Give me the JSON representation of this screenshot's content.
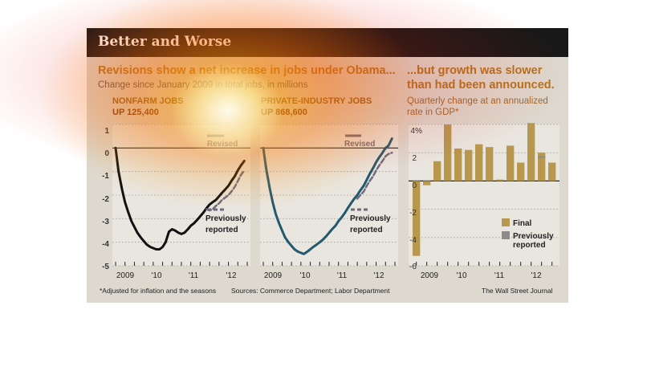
{
  "title": "Better and Worse",
  "left_heading": "Revisions show a net increase in jobs under Obama...",
  "left_sub": "Change since January 2009 in total jobs, in millions",
  "right_heading_1": "...but growth was slower",
  "right_heading_2": "than had been announced.",
  "right_sub_1": "Quarterly change at an annualized",
  "right_sub_2": "rate in GDP*",
  "nonfarm": {
    "label": "NONFARM JOBS",
    "value": "UP 125,400",
    "revised": "Revised",
    "prev1": "Previously",
    "prev2": "reported"
  },
  "private": {
    "label": "PRIVATE-INDUSTRY JOBS",
    "value": "UP 868,600",
    "revised": "Revised",
    "prev1": "Previously",
    "prev2": "reported"
  },
  "legend": {
    "final": "Final",
    "prev1": "Previously",
    "prev2": "reported"
  },
  "footnote": "*Adjusted for inflation and the seasons",
  "sources": "Sources: Commerce Department; Labor Department",
  "credit": "The Wall Street Journal",
  "colors": {
    "nonfarm_line": "#111111",
    "private_line": "#23586e",
    "previous_line": "#6f6a7e",
    "final_bar": "#b8974f",
    "previous_bar": "#8b8b8b"
  },
  "chart_data": [
    {
      "type": "line",
      "name": "NONFARM JOBS",
      "ylim": [
        -5,
        1
      ],
      "y_ticks": [
        "1",
        "0",
        "-1",
        "-2",
        "-3",
        "-4",
        "-5"
      ],
      "x_ticks": [
        "2009",
        "'10",
        "'11",
        "'12"
      ],
      "series": [
        {
          "name": "Revised",
          "x": [
            2009.0,
            2009.08,
            2009.17,
            2009.25,
            2009.33,
            2009.42,
            2009.5,
            2009.58,
            2009.67,
            2009.75,
            2009.83,
            2009.92,
            2010.0,
            2010.08,
            2010.17,
            2010.25,
            2010.33,
            2010.42,
            2010.5,
            2010.58,
            2010.67,
            2010.75,
            2010.83,
            2010.92,
            2011.0,
            2011.08,
            2011.17,
            2011.25,
            2011.33,
            2011.42,
            2011.5,
            2011.58,
            2011.67,
            2011.75,
            2011.83,
            2011.92,
            2012.0,
            2012.08,
            2012.17,
            2012.25,
            2012.33,
            2012.42
          ],
          "y": [
            0,
            -1.0,
            -1.75,
            -2.3,
            -2.7,
            -3.1,
            -3.35,
            -3.6,
            -3.8,
            -3.95,
            -4.1,
            -4.2,
            -4.25,
            -4.3,
            -4.3,
            -4.2,
            -4.0,
            -3.55,
            -3.45,
            -3.5,
            -3.6,
            -3.65,
            -3.6,
            -3.45,
            -3.3,
            -3.2,
            -3.05,
            -2.9,
            -2.75,
            -2.55,
            -2.4,
            -2.3,
            -2.2,
            -2.05,
            -1.9,
            -1.75,
            -1.6,
            -1.4,
            -1.2,
            -0.95,
            -0.75,
            -0.55
          ]
        },
        {
          "name": "Previously reported",
          "x": [
            2011.42,
            2011.5,
            2011.58,
            2011.67,
            2011.75,
            2011.83,
            2011.92,
            2012.0,
            2012.08,
            2012.17,
            2012.25,
            2012.33,
            2012.42
          ],
          "y": [
            -2.6,
            -2.65,
            -2.6,
            -2.45,
            -2.35,
            -2.2,
            -2.1,
            -2.0,
            -1.85,
            -1.65,
            -1.4,
            -1.15,
            -0.95
          ]
        }
      ]
    },
    {
      "type": "line",
      "name": "PRIVATE-INDUSTRY JOBS",
      "ylim": [
        -5,
        1
      ],
      "x_ticks": [
        "2009",
        "'10",
        "'11",
        "'12"
      ],
      "series": [
        {
          "name": "Revised",
          "x": [
            2009.0,
            2009.08,
            2009.17,
            2009.25,
            2009.33,
            2009.42,
            2009.5,
            2009.58,
            2009.67,
            2009.75,
            2009.83,
            2009.92,
            2010.0,
            2010.08,
            2010.17,
            2010.25,
            2010.33,
            2010.42,
            2010.5,
            2010.58,
            2010.67,
            2010.75,
            2010.83,
            2010.92,
            2011.0,
            2011.08,
            2011.17,
            2011.25,
            2011.33,
            2011.42,
            2011.5,
            2011.58,
            2011.67,
            2011.75,
            2011.83,
            2011.92,
            2012.0,
            2012.08,
            2012.17,
            2012.25,
            2012.33,
            2012.42
          ],
          "y": [
            0,
            -0.9,
            -1.7,
            -2.3,
            -2.8,
            -3.2,
            -3.5,
            -3.8,
            -4.0,
            -4.15,
            -4.3,
            -4.4,
            -4.45,
            -4.5,
            -4.4,
            -4.3,
            -4.2,
            -4.1,
            -4.0,
            -3.9,
            -3.75,
            -3.6,
            -3.45,
            -3.3,
            -3.1,
            -2.95,
            -2.75,
            -2.55,
            -2.35,
            -2.15,
            -2.0,
            -1.8,
            -1.6,
            -1.35,
            -1.1,
            -0.85,
            -0.6,
            -0.4,
            -0.2,
            0.0,
            0.1,
            0.4
          ]
        },
        {
          "name": "Previously reported",
          "x": [
            2011.5,
            2011.58,
            2011.67,
            2011.75,
            2011.83,
            2011.92,
            2012.0,
            2012.08,
            2012.17,
            2012.25,
            2012.33,
            2012.42
          ],
          "y": [
            -2.15,
            -2.0,
            -1.85,
            -1.6,
            -1.4,
            -1.2,
            -0.95,
            -0.75,
            -0.55,
            -0.35,
            -0.25,
            -0.2
          ]
        }
      ]
    },
    {
      "type": "bar",
      "name": "GDP",
      "ylim": [
        -6,
        4
      ],
      "y_ticks": [
        "4%",
        "2",
        "0",
        "-2",
        "-4",
        "-6"
      ],
      "x_ticks": [
        "2009",
        "'10",
        "'11",
        "'12"
      ],
      "categories": [
        "2009 Q1",
        "2009 Q2",
        "2009 Q3",
        "2009 Q4",
        "2010 Q1",
        "2010 Q2",
        "2010 Q3",
        "2010 Q4",
        "2011 Q1",
        "2011 Q2",
        "2011 Q3",
        "2011 Q4",
        "2012 Q1",
        "2012 Q2"
      ],
      "series": [
        {
          "name": "Final",
          "values": [
            -5.3,
            -0.3,
            1.4,
            4.0,
            2.3,
            2.2,
            2.6,
            2.4,
            0.1,
            2.5,
            1.3,
            4.1,
            2.0,
            1.3
          ]
        },
        {
          "name": "Previously reported",
          "values": [
            -5.3,
            -0.3,
            1.4,
            4.0,
            2.3,
            2.2,
            2.6,
            2.4,
            0.1,
            2.5,
            1.3,
            4.1,
            1.7,
            1.3
          ]
        }
      ]
    }
  ]
}
